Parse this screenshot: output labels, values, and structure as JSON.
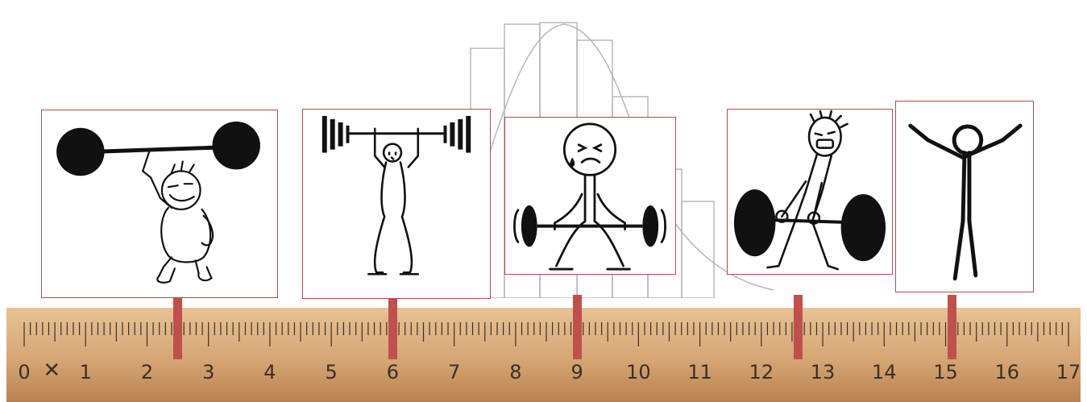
{
  "colors": {
    "frame": "#b44a4a",
    "marker": "#c0504d",
    "wood_light": "#e7c295",
    "wood_mid": "#d6a674",
    "wood_dark": "#b98150",
    "ruler_text": "#3a3028",
    "ink": "#111111",
    "bell_line": "#b8b8b8"
  },
  "ruler": {
    "labels": [
      "0",
      "1",
      "2",
      "3",
      "4",
      "5",
      "6",
      "7",
      "8",
      "9",
      "10",
      "11",
      "12",
      "13",
      "14",
      "15",
      "16",
      "17"
    ],
    "x_glyph": "✕",
    "min": 0,
    "max": 17
  },
  "figures": [
    {
      "id": "figure-effortless-lifter",
      "icon": "strongman-one-finger-lift-icon",
      "ruler_position": 2.5
    },
    {
      "id": "figure-overhead-press",
      "icon": "stickman-overhead-barbell-icon",
      "ruler_position": 6.0
    },
    {
      "id": "figure-struggling-lift",
      "icon": "stickman-straining-squat-icon",
      "ruler_position": 9.0
    },
    {
      "id": "figure-screaming-deadlift",
      "icon": "stickman-screaming-deadlift-icon",
      "ruler_position": 12.6
    },
    {
      "id": "figure-arms-up",
      "icon": "stickman-arms-raised-icon",
      "ruler_position": 15.1
    }
  ]
}
